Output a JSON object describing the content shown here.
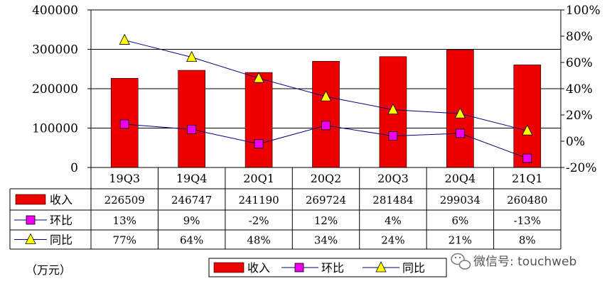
{
  "chart_data": {
    "type": "bar",
    "categories": [
      "19Q3",
      "19Q4",
      "20Q1",
      "20Q2",
      "20Q3",
      "20Q4",
      "21Q1"
    ],
    "series": [
      {
        "name": "收入",
        "kind": "bar",
        "axis": "left",
        "color": "#ee0000",
        "values": [
          226509,
          246747,
          241190,
          269724,
          281484,
          299034,
          260480
        ],
        "labels": [
          "226509",
          "246747",
          "241190",
          "269724",
          "281484",
          "299034",
          "260480"
        ]
      },
      {
        "name": "环比",
        "kind": "line",
        "axis": "right",
        "marker": "square",
        "marker_color": "#ee00ee",
        "line_color": "#000080",
        "values": [
          13,
          9,
          -2,
          12,
          4,
          6,
          -13
        ],
        "labels": [
          "13%",
          "9%",
          "-2%",
          "12%",
          "4%",
          "6%",
          "-13%"
        ]
      },
      {
        "name": "同比",
        "kind": "line",
        "axis": "right",
        "marker": "triangle",
        "marker_color": "#ffff00",
        "line_color": "#000080",
        "values": [
          77,
          64,
          48,
          34,
          24,
          21,
          8
        ],
        "labels": [
          "77%",
          "64%",
          "48%",
          "34%",
          "24%",
          "21%",
          "8%"
        ]
      }
    ],
    "y_left": {
      "min": 0,
      "max": 400000,
      "ticks": [
        0,
        100000,
        200000,
        300000,
        400000
      ],
      "tick_labels": [
        "0",
        "100000",
        "200000",
        "300000",
        "400000"
      ]
    },
    "y_right": {
      "min": -20,
      "max": 100,
      "ticks": [
        -20,
        0,
        20,
        40,
        60,
        80,
        100
      ],
      "tick_labels": [
        "-20%",
        "0%",
        "20%",
        "40%",
        "60%",
        "80%",
        "100%"
      ]
    },
    "grid": true,
    "unit_label": "（万元）",
    "legend_placement": "bottom",
    "table_below": true
  },
  "watermark": {
    "text": "微信号: touchweb"
  }
}
